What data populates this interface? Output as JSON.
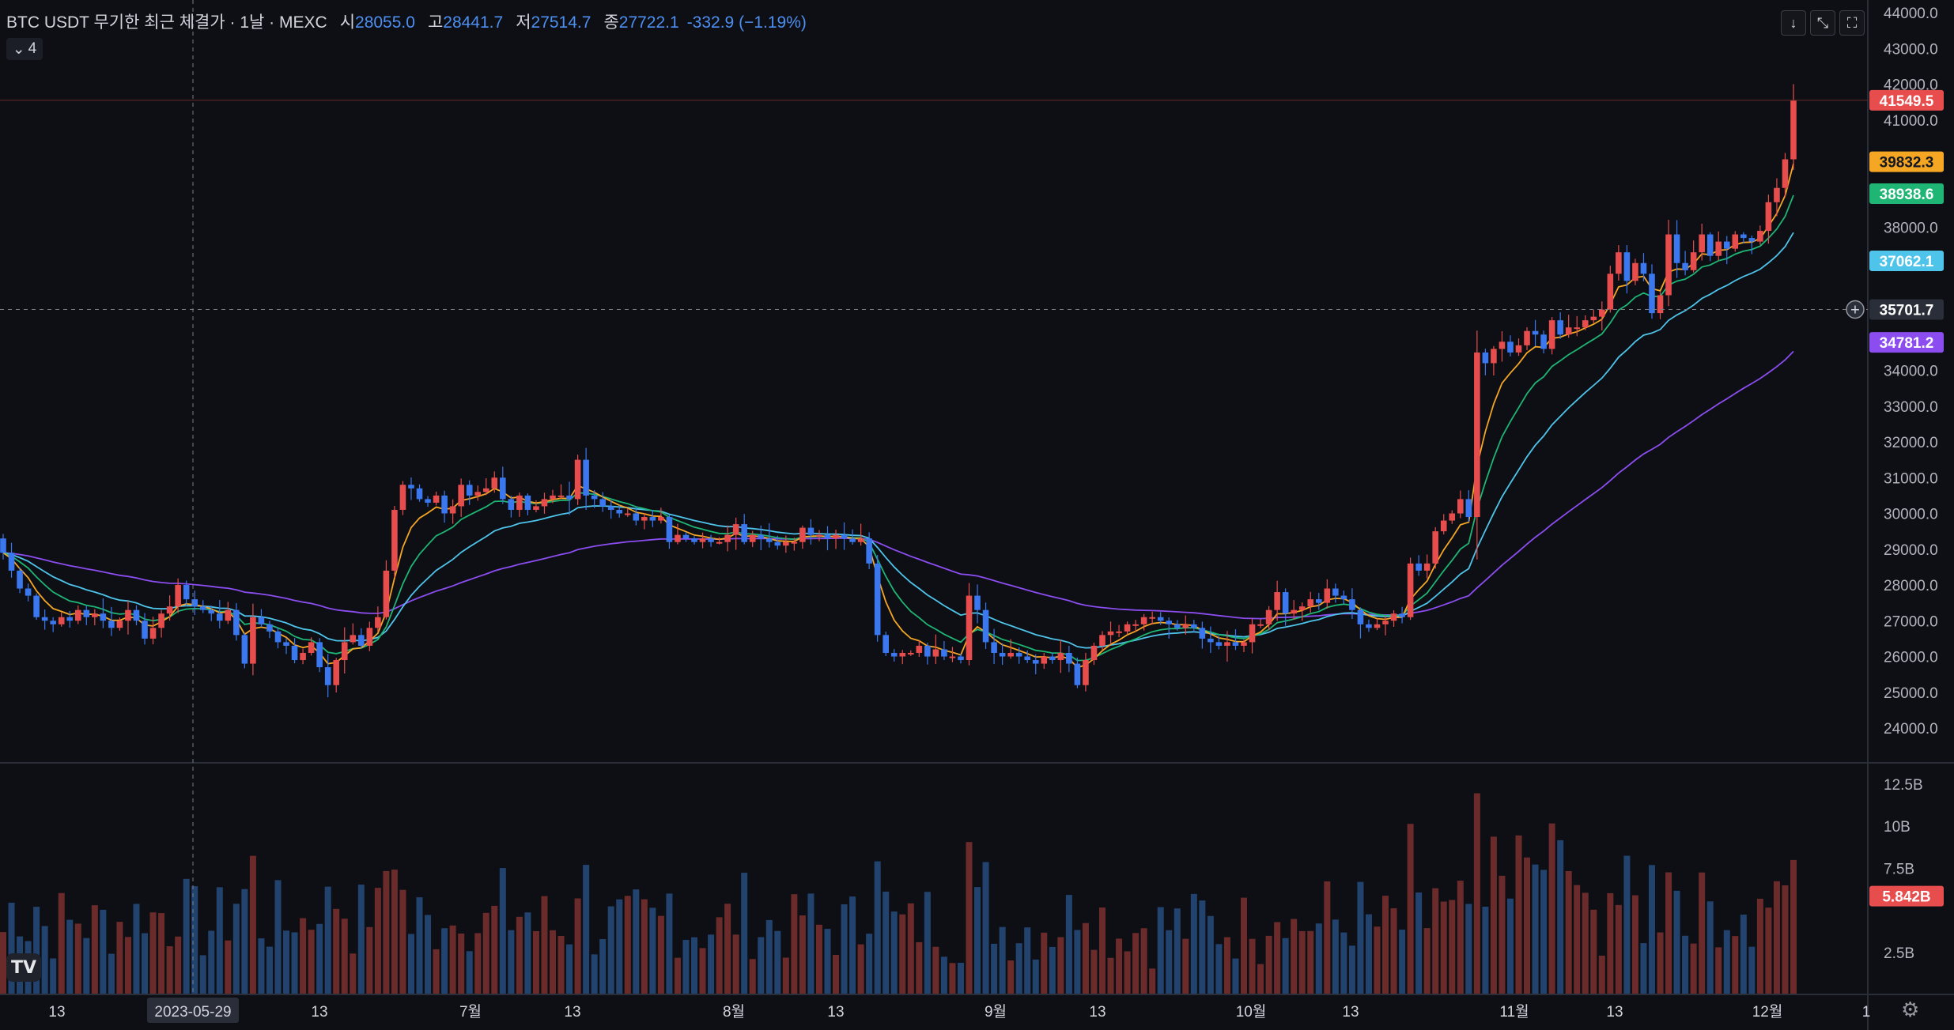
{
  "legend": {
    "symbol": "BTC USDT 무기한 최근 체결가 · 1날 · MEXC",
    "open_label": "시",
    "open": "28055.0",
    "high_label": "고",
    "high": "28441.7",
    "low_label": "저",
    "low": "27514.7",
    "close_label": "종",
    "close": "27722.1",
    "change": "-332.9 (−1.19%)"
  },
  "indicators_toggle": "4",
  "toolbar_icons": [
    "download-icon",
    "collapse-icon",
    "fullscreen-icon"
  ],
  "colors": {
    "up": "#e84d4d",
    "down": "#3b78f0",
    "ma_orange": "#f5a623",
    "ma_green": "#1fb574",
    "ma_cyan": "#4ec4ea",
    "ma_purple": "#8c4df0",
    "vol_up": "#6b2b2b",
    "vol_down": "#23436f"
  },
  "chart_data": {
    "type": "candlestick",
    "symbol": "BTC USDT",
    "price_axis": {
      "min": 24000,
      "max": 44000,
      "ticks": [
        "44000.0",
        "43000.0",
        "42000.0",
        "41000.0",
        "38000.0",
        "34000.0",
        "33000.0",
        "32000.0",
        "31000.0",
        "30000.0",
        "29000.0",
        "28000.0",
        "27000.0",
        "26000.0",
        "25000.0",
        "24000.0"
      ]
    },
    "volume_axis": {
      "ticks": [
        "12.5B",
        "10B",
        "7.5B",
        "2.5B"
      ]
    },
    "x_ticks": [
      "13",
      "2023-05-29",
      "13",
      "7월",
      "13",
      "8월",
      "13",
      "9월",
      "13",
      "10월",
      "13",
      "11월",
      "13",
      "12월",
      "1"
    ],
    "price_labels": [
      {
        "value": "41549.5",
        "color": "#e84d4d"
      },
      {
        "value": "39832.3",
        "color": "#f5a623"
      },
      {
        "value": "38938.6",
        "color": "#1fb574"
      },
      {
        "value": "37062.1",
        "color": "#4ec4ea"
      },
      {
        "value": "35701.7",
        "color": "#2a2e39"
      },
      {
        "value": "34781.2",
        "color": "#8c4df0"
      }
    ],
    "volume_label": "5.842B",
    "crosshair": {
      "date": "2023-05-29",
      "price": "35701.7"
    },
    "closes": [
      28900,
      28400,
      27900,
      27700,
      27100,
      27000,
      26900,
      27100,
      27000,
      27300,
      27100,
      27200,
      27000,
      26800,
      27000,
      27300,
      27000,
      26500,
      26800,
      27200,
      27400,
      28000,
      27600,
      27400,
      27300,
      27200,
      27000,
      27300,
      26600,
      25800,
      27100,
      26900,
      26700,
      26400,
      26300,
      25900,
      26100,
      26400,
      25700,
      25200,
      25900,
      26400,
      26600,
      26300,
      26800,
      27100,
      28400,
      30100,
      30800,
      30700,
      30400,
      30300,
      30500,
      30000,
      30200,
      30800,
      30500,
      30600,
      30700,
      31000,
      30400,
      30100,
      30500,
      30100,
      30200,
      30400,
      30500,
      30500,
      30400,
      31500,
      30500,
      30400,
      30200,
      30100,
      30000,
      30000,
      29800,
      29900,
      29800,
      29900,
      29200,
      29400,
      29300,
      29200,
      29300,
      29200,
      29200,
      29400,
      29700,
      29200,
      29400,
      29300,
      29200,
      29100,
      29200,
      29200,
      29600,
      29400,
      29400,
      29300,
      29400,
      29300,
      29200,
      29300,
      28600,
      26600,
      26100,
      26000,
      26100,
      26100,
      26300,
      26000,
      26200,
      26000,
      26000,
      25900,
      27700,
      27300,
      26400,
      26100,
      26000,
      26100,
      26000,
      25900,
      25800,
      26000,
      25900,
      26100,
      25800,
      25200,
      25900,
      26300,
      26600,
      26700,
      26700,
      26900,
      26900,
      27100,
      27100,
      27000,
      26900,
      26800,
      26900,
      26800,
      26500,
      26400,
      26300,
      26400,
      26300,
      26400,
      26900,
      26900,
      27300,
      27800,
      27200,
      27300,
      27400,
      27600,
      27500,
      27900,
      27700,
      27600,
      27300,
      26900,
      26800,
      26900,
      27000,
      27200,
      27100,
      28600,
      28400,
      28600,
      29500,
      29800,
      30000,
      30400,
      29900,
      34500,
      34200,
      34600,
      34800,
      34500,
      34700,
      35100,
      35000,
      34600,
      35400,
      35000,
      35200,
      35200,
      35400,
      35500,
      35700,
      36700,
      37300,
      36500,
      37000,
      36700,
      35600,
      36100,
      37800,
      37000,
      36800,
      37300,
      37800,
      37200,
      37600,
      37400,
      37800,
      37700,
      37600,
      37900,
      38700,
      39100,
      39900,
      41549.5
    ]
  }
}
